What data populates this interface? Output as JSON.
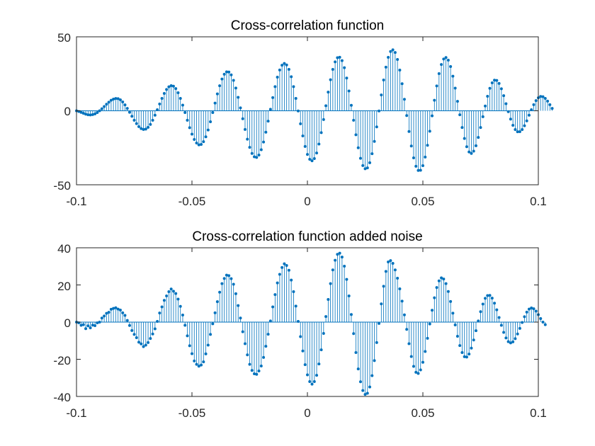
{
  "chart_data": [
    {
      "type": "stem",
      "title": "Cross-correlation function",
      "xlabel": "",
      "ylabel": "",
      "xlim": [
        -0.1,
        0.1
      ],
      "ylim": [
        -50,
        50
      ],
      "xticks": [
        "-0.1",
        "-0.05",
        "0",
        "0.05",
        "0.1"
      ],
      "yticks": [
        "-50",
        "0",
        "50"
      ],
      "grid": false,
      "color": "#0072BD",
      "x_start": -0.1,
      "x_step": 0.001,
      "values": [
        0.0,
        -0.5,
        -1.1,
        -1.7,
        -2.3,
        -2.7,
        -2.8,
        -2.6,
        -2.1,
        -1.2,
        0.0,
        1.4,
        2.9,
        4.4,
        5.8,
        7.1,
        7.9,
        8.3,
        8.2,
        7.4,
        6.0,
        4.0,
        1.6,
        -1.0,
        -3.7,
        -6.4,
        -8.7,
        -10.7,
        -12.0,
        -12.6,
        -12.4,
        -11.2,
        -9.2,
        -6.4,
        -3.0,
        0.7,
        4.6,
        8.4,
        11.7,
        14.4,
        16.2,
        17.0,
        16.6,
        15.0,
        12.2,
        8.4,
        3.8,
        -1.2,
        -6.4,
        -11.4,
        -15.8,
        -19.4,
        -21.8,
        -23.0,
        -22.7,
        -20.9,
        -17.6,
        -13.0,
        -7.4,
        -1.2,
        5.2,
        11.4,
        16.9,
        21.5,
        24.7,
        26.3,
        26.2,
        24.3,
        20.6,
        15.4,
        9.1,
        2.0,
        -5.4,
        -12.6,
        -19.2,
        -24.7,
        -28.8,
        -31.1,
        -31.5,
        -29.9,
        -26.3,
        -21.1,
        -14.5,
        -7.0,
        1.0,
        8.9,
        16.3,
        22.7,
        27.6,
        30.8,
        32.0,
        31.0,
        28.0,
        23.0,
        16.3,
        8.4,
        -0.1,
        -8.8,
        -17.0,
        -24.1,
        -29.5,
        -32.8,
        -33.8,
        -32.3,
        -28.5,
        -22.5,
        -14.8,
        -5.9,
        3.4,
        12.6,
        21.0,
        28.0,
        33.1,
        35.9,
        36.2,
        33.9,
        29.1,
        22.1,
        13.4,
        3.7,
        -6.4,
        -16.2,
        -25.0,
        -32.1,
        -37.0,
        -39.2,
        -38.6,
        -35.1,
        -29.0,
        -20.7,
        -10.9,
        -0.1,
        10.7,
        20.8,
        29.5,
        36.1,
        40.1,
        41.2,
        39.4,
        34.7,
        27.5,
        18.3,
        7.8,
        -3.2,
        -14.0,
        -23.8,
        -31.8,
        -37.5,
        -40.3,
        -40.2,
        -37.1,
        -31.3,
        -23.3,
        -13.8,
        -3.4,
        7.1,
        16.8,
        25.1,
        31.3,
        35.0,
        36.0,
        34.2,
        29.9,
        23.4,
        15.3,
        6.4,
        -2.7,
        -11.3,
        -18.7,
        -24.3,
        -27.8,
        -28.8,
        -27.3,
        -23.6,
        -18.0,
        -11.3,
        -4.0,
        3.2,
        9.8,
        15.2,
        18.9,
        20.7,
        20.5,
        18.5,
        14.9,
        10.2,
        4.8,
        -0.6,
        -5.6,
        -9.8,
        -12.7,
        -14.2,
        -14.1,
        -12.7,
        -10.1,
        -6.8,
        -3.0,
        0.7,
        4.1,
        6.9,
        8.8,
        9.7,
        9.5,
        8.4,
        6.5,
        4.1,
        1.6
      ]
    },
    {
      "type": "stem",
      "title": "Cross-correlation function added noise",
      "xlabel": "",
      "ylabel": "",
      "xlim": [
        -0.1,
        0.1
      ],
      "ylim": [
        -40,
        40
      ],
      "xticks": [
        "-0.1",
        "-0.05",
        "0",
        "0.05",
        "0.1"
      ],
      "yticks": [
        "-40",
        "-20",
        "0",
        "20",
        "40"
      ],
      "grid": false,
      "color": "#0072BD",
      "x_start": -0.1,
      "x_step": 0.001,
      "values": [
        0.0,
        -0.4,
        -1.7,
        -1.4,
        -3.5,
        -2.0,
        -3.1,
        -1.6,
        -1.9,
        -0.4,
        0.0,
        2.2,
        3.3,
        4.7,
        5.3,
        6.9,
        7.4,
        7.7,
        7.0,
        6.5,
        5.0,
        3.6,
        0.9,
        -1.8,
        -4.5,
        -6.6,
        -8.4,
        -10.8,
        -11.7,
        -13.2,
        -12.4,
        -11.0,
        -8.8,
        -6.4,
        -3.6,
        0.4,
        4.9,
        8.2,
        11.7,
        14.1,
        16.4,
        17.8,
        16.6,
        15.4,
        12.4,
        8.5,
        3.8,
        -1.7,
        -7.4,
        -12.7,
        -17.0,
        -20.9,
        -22.7,
        -23.7,
        -23.1,
        -21.4,
        -17.1,
        -12.4,
        -6.6,
        -0.9,
        5.0,
        11.0,
        16.1,
        20.7,
        23.5,
        25.3,
        25.0,
        23.4,
        20.4,
        15.3,
        8.9,
        2.2,
        -5.2,
        -11.6,
        -17.6,
        -22.7,
        -26.0,
        -27.8,
        -28.1,
        -26.3,
        -23.6,
        -19.0,
        -13.0,
        -6.5,
        0.6,
        8.2,
        14.8,
        21.1,
        25.7,
        29.4,
        31.4,
        30.5,
        27.9,
        22.6,
        16.4,
        8.6,
        0.4,
        -7.8,
        -15.5,
        -22.9,
        -28.4,
        -32.0,
        -33.4,
        -32.0,
        -28.6,
        -22.5,
        -14.9,
        -6.1,
        3.0,
        12.2,
        20.7,
        28.1,
        33.3,
        36.5,
        37.1,
        35.0,
        30.1,
        23.0,
        14.1,
        4.1,
        -6.2,
        -16.4,
        -25.2,
        -32.1,
        -36.8,
        -38.9,
        -38.3,
        -34.9,
        -28.8,
        -20.7,
        -11.0,
        -0.7,
        9.8,
        19.3,
        27.3,
        32.4,
        33.1,
        31.6,
        28.1,
        23.6,
        17.9,
        11.3,
        3.9,
        -3.9,
        -11.6,
        -18.5,
        -23.8,
        -27.0,
        -27.6,
        -25.7,
        -21.6,
        -15.8,
        -8.7,
        -1.0,
        6.4,
        13.1,
        18.6,
        22.2,
        23.8,
        23.2,
        20.7,
        16.5,
        11.1,
        4.8,
        -1.5,
        -7.6,
        -12.6,
        -16.4,
        -18.6,
        -18.8,
        -17.2,
        -14.0,
        -9.6,
        -4.6,
        0.6,
        5.6,
        9.7,
        12.8,
        14.3,
        14.4,
        12.9,
        10.2,
        6.6,
        2.5,
        -1.7,
        -5.5,
        -8.5,
        -10.5,
        -11.2,
        -10.6,
        -8.9,
        -6.4,
        -3.4,
        -0.2,
        2.9,
        5.4,
        7.0,
        7.6,
        7.2,
        5.9,
        4.0,
        1.9,
        0.0,
        -1.4
      ]
    }
  ]
}
